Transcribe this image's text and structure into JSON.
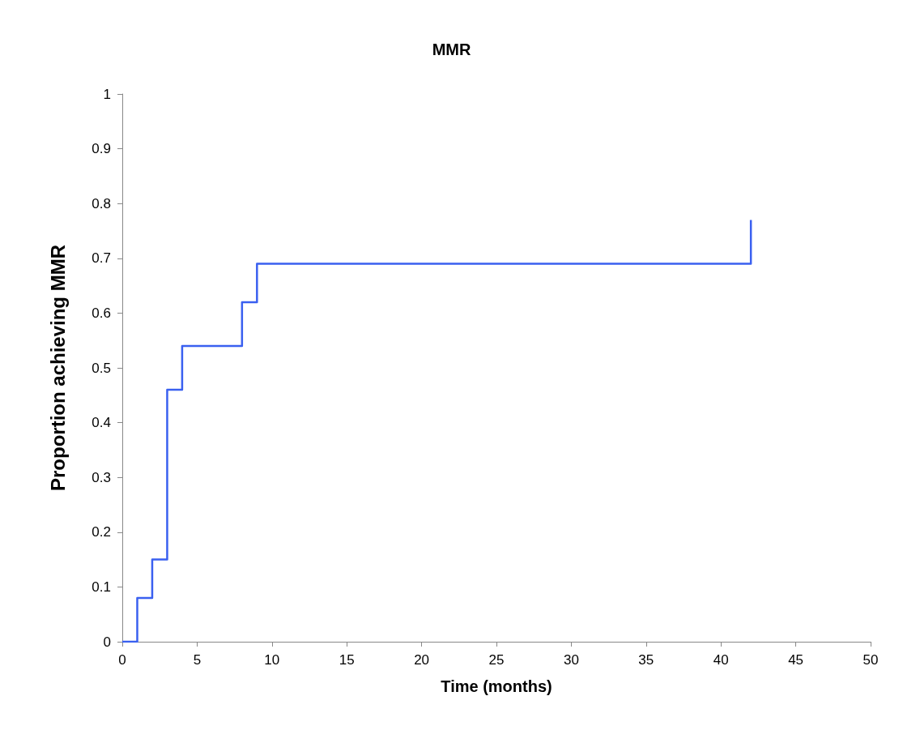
{
  "chart_data": {
    "type": "step",
    "title": "MMR",
    "xlabel": "Time (months)",
    "ylabel": "Proportion achieving MMR",
    "x": [
      0,
      1,
      2,
      3,
      4,
      8,
      9,
      42
    ],
    "values": [
      0,
      0.08,
      0.15,
      0.46,
      0.54,
      0.62,
      0.69,
      0.77
    ],
    "color": "#3a60f0",
    "xlim": [
      0,
      50
    ],
    "xticks": [
      0,
      5,
      10,
      15,
      20,
      25,
      30,
      35,
      40,
      45,
      50
    ],
    "ylim": [
      0,
      1
    ],
    "yticks": [
      0,
      0.1,
      0.2,
      0.3,
      0.4,
      0.5,
      0.6,
      0.7,
      0.8,
      0.9,
      1
    ]
  }
}
